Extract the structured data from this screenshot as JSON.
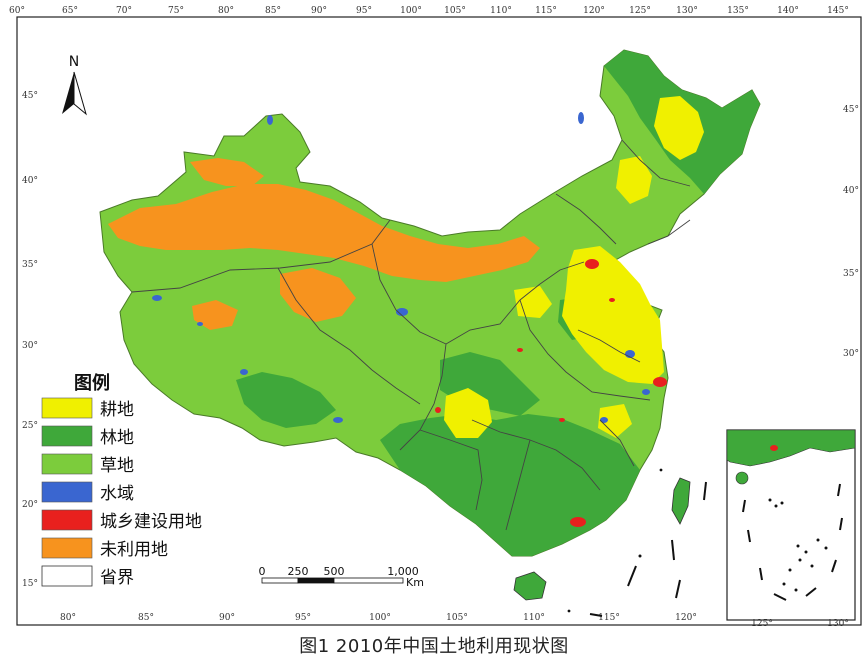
{
  "map": {
    "top_lon_labels": [
      "60°",
      "65°",
      "70°",
      "75°",
      "80°",
      "85°",
      "90°",
      "95°",
      "100°",
      "105°",
      "110°",
      "115°",
      "120°",
      "125°",
      "130°",
      "135°",
      "140°",
      "145°"
    ],
    "bottom_lon_labels": [
      "80°",
      "85°",
      "90°",
      "95°",
      "100°",
      "105°",
      "110°",
      "115°",
      "120°"
    ],
    "inset_bottom_labels": [
      "125°",
      "130°"
    ],
    "left_lat_labels": [
      "45°",
      "40°",
      "35°",
      "30°",
      "25°",
      "20°",
      "15°"
    ],
    "right_lat_labels": [
      "45°",
      "40°",
      "35°",
      "30°"
    ],
    "north_label": "N",
    "colors": {
      "cropland": "#f0f000",
      "forest": "#3fa83a",
      "grassland": "#7ccc3c",
      "water": "#3a66d0",
      "urban": "#e8201e",
      "unused": "#f7931e",
      "border": "#333333"
    }
  },
  "legend": {
    "title": "图例",
    "items": [
      {
        "key": "cropland",
        "label": "耕地"
      },
      {
        "key": "forest",
        "label": "林地"
      },
      {
        "key": "grassland",
        "label": "草地"
      },
      {
        "key": "water",
        "label": "水域"
      },
      {
        "key": "urban",
        "label": "城乡建设用地"
      },
      {
        "key": "unused",
        "label": "未利用地"
      },
      {
        "key": "border",
        "label": "省界"
      }
    ]
  },
  "scale_bar": {
    "ticks": [
      "0",
      "250",
      "500",
      "1,000"
    ],
    "unit": "Km"
  },
  "caption": "图1  2010年中国土地利用现状图"
}
